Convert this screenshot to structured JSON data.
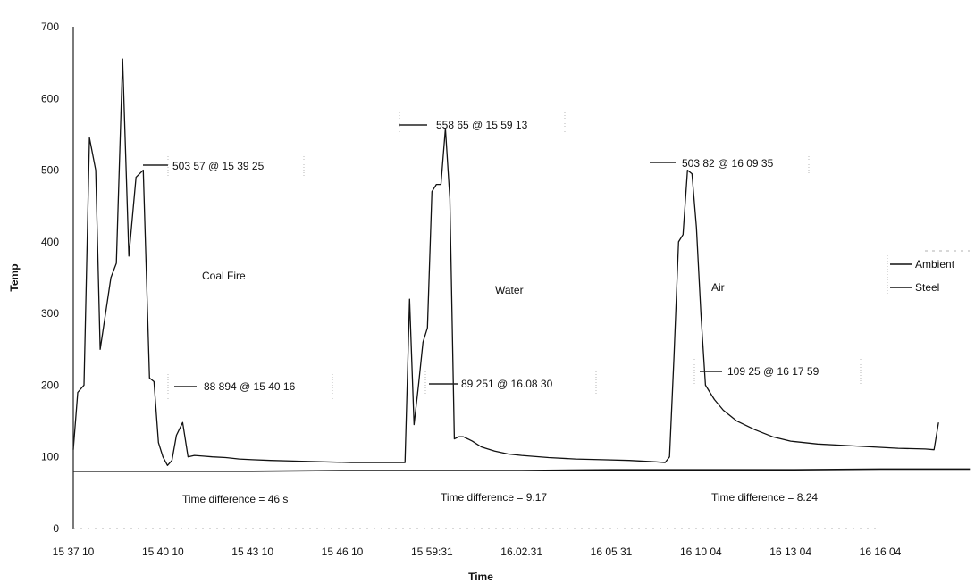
{
  "chart_data": {
    "type": "line",
    "title": "",
    "xlabel": "Time",
    "ylabel": "Temp",
    "ylim": [
      0,
      700
    ],
    "yticks": [
      "0",
      "100",
      "200",
      "300",
      "400",
      "500",
      "600",
      "700"
    ],
    "xticks": [
      "15 37 10",
      "15 40 10",
      "15 43 10",
      "15 46 10",
      "15 59:31",
      "16.02.31",
      "16 05 31",
      "16 10 04",
      "16 13 04",
      "16 16 04"
    ],
    "legend": {
      "position": "right",
      "entries": [
        "Ambient",
        "Steel"
      ]
    },
    "phase_labels": [
      "Coal Fire",
      "Water",
      "Air"
    ],
    "annotations": [
      "503 57 @ 15 39 25",
      "558 65 @ 15 59 13",
      "503 82 @ 16 09 35",
      "88 894 @ 15 40 16",
      "89 251 @ 16.08 30",
      "109 25 @ 16 17 59"
    ],
    "time_differences": [
      "Time difference = 46 s",
      "Time difference = 9.17",
      "Time difference = 8.24"
    ],
    "grid": false,
    "series": [
      {
        "name": "Ambient",
        "x": [
          0,
          1,
          2,
          3,
          4,
          5,
          6,
          7,
          8,
          9,
          10
        ],
        "y": [
          80,
          80,
          80,
          81,
          81,
          81,
          82,
          82,
          82,
          83,
          83
        ]
      },
      {
        "name": "Steel",
        "x": [
          0,
          0.05,
          0.12,
          0.18,
          0.25,
          0.3,
          0.36,
          0.42,
          0.48,
          0.55,
          0.62,
          0.7,
          0.78,
          0.85,
          0.9,
          0.95,
          1.0,
          1.05,
          1.1,
          1.15,
          1.22,
          1.28,
          1.35,
          1.45,
          1.55,
          1.7,
          1.85,
          2.0,
          2.2,
          2.5,
          2.8,
          3.1,
          3.4,
          3.7,
          3.75,
          3.8,
          3.85,
          3.9,
          3.95,
          4.0,
          4.05,
          4.1,
          4.15,
          4.2,
          4.25,
          4.3,
          4.35,
          4.4,
          4.45,
          4.5,
          4.55,
          4.6,
          4.7,
          4.85,
          5.0,
          5.3,
          5.6,
          5.9,
          6.2,
          6.5,
          6.6,
          6.65,
          6.7,
          6.75,
          6.8,
          6.85,
          6.9,
          6.95,
          7.0,
          7.05,
          7.1,
          7.15,
          7.25,
          7.4,
          7.6,
          7.8,
          8.0,
          8.3,
          8.6,
          8.9,
          9.2,
          9.5,
          9.6,
          9.65
        ],
        "y": [
          110,
          190,
          200,
          545,
          500,
          250,
          300,
          350,
          370,
          655,
          380,
          490,
          500,
          210,
          205,
          120,
          100,
          88,
          95,
          130,
          148,
          100,
          102,
          101,
          100,
          99,
          97,
          96,
          95,
          94,
          93,
          92,
          92,
          92,
          320,
          145,
          200,
          260,
          280,
          470,
          480,
          480,
          558,
          460,
          125,
          128,
          128,
          125,
          122,
          118,
          114,
          112,
          108,
          104,
          102,
          99,
          97,
          96,
          95,
          93,
          92,
          100,
          240,
          400,
          410,
          500,
          495,
          420,
          300,
          200,
          190,
          180,
          165,
          150,
          138,
          128,
          122,
          118,
          116,
          114,
          112,
          111,
          110,
          148
        ]
      }
    ]
  }
}
